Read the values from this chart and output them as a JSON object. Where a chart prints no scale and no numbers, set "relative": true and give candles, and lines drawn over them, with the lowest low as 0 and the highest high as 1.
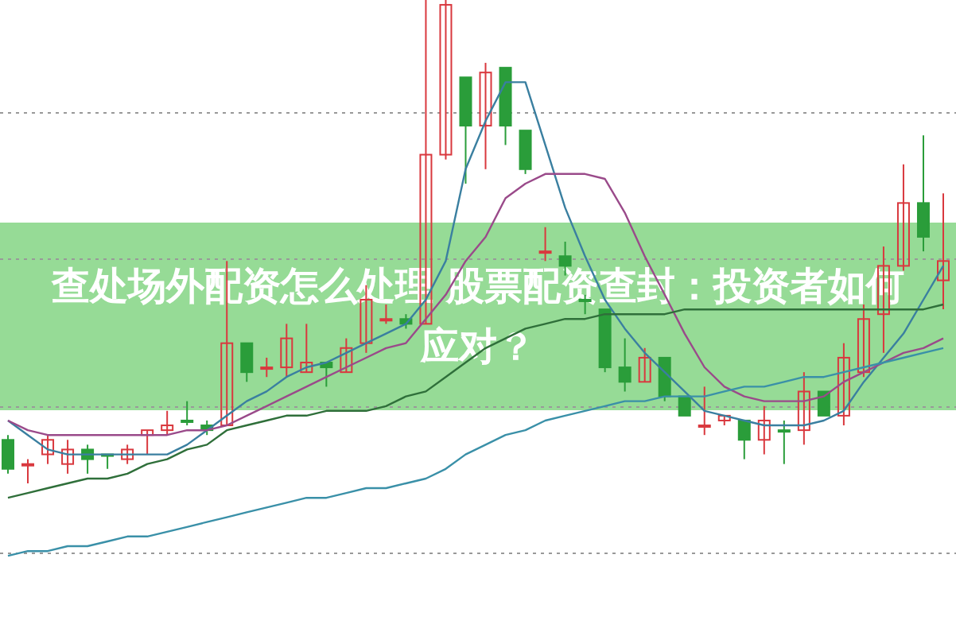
{
  "chart_data": {
    "type": "candlestick",
    "title": "查处场外配资怎么处理 股票配资查封：投资者如何应对？",
    "relative": true,
    "grid": true,
    "categories": [
      null,
      null,
      null,
      null,
      null,
      null,
      null,
      null,
      null,
      null,
      null,
      null,
      null,
      null,
      null,
      null,
      null,
      null,
      null,
      null,
      null,
      null,
      null,
      null,
      null,
      null,
      null,
      null,
      null,
      null,
      null,
      null,
      null,
      null,
      null,
      null,
      null,
      null,
      null,
      null,
      null,
      null,
      null,
      null,
      null,
      null,
      null,
      null
    ],
    "ohlc": [
      [
        0.09,
        0.1,
        0.02,
        0.03
      ],
      [
        0.04,
        0.05,
        0.0,
        0.04
      ],
      [
        0.06,
        0.1,
        0.04,
        0.09
      ],
      [
        0.04,
        0.09,
        0.02,
        0.07
      ],
      [
        0.07,
        0.08,
        0.02,
        0.05
      ],
      [
        0.06,
        0.06,
        0.03,
        0.06
      ],
      [
        0.05,
        0.08,
        0.04,
        0.07
      ],
      [
        0.1,
        0.11,
        0.06,
        0.11
      ],
      [
        0.11,
        0.15,
        0.1,
        0.12
      ],
      [
        0.13,
        0.17,
        0.12,
        0.13
      ],
      [
        0.12,
        0.13,
        0.1,
        0.11
      ],
      [
        0.12,
        0.46,
        0.12,
        0.29
      ],
      [
        0.29,
        0.29,
        0.21,
        0.23
      ],
      [
        0.24,
        0.26,
        0.22,
        0.24
      ],
      [
        0.24,
        0.33,
        0.22,
        0.3
      ],
      [
        0.23,
        0.33,
        0.23,
        0.25
      ],
      [
        0.25,
        0.25,
        0.2,
        0.24
      ],
      [
        0.23,
        0.3,
        0.23,
        0.28
      ],
      [
        0.29,
        0.41,
        0.27,
        0.38
      ],
      [
        0.34,
        0.37,
        0.33,
        0.34
      ],
      [
        0.34,
        0.35,
        0.32,
        0.33
      ],
      [
        0.33,
        1.0,
        0.33,
        0.68
      ],
      [
        0.68,
        1.0,
        0.67,
        0.99
      ],
      [
        0.84,
        0.84,
        0.62,
        0.74
      ],
      [
        0.74,
        0.87,
        0.65,
        0.85
      ],
      [
        0.86,
        0.86,
        0.7,
        0.74
      ],
      [
        0.73,
        0.73,
        0.64,
        0.65
      ],
      [
        0.48,
        0.53,
        0.46,
        0.48
      ],
      [
        0.47,
        0.5,
        0.43,
        0.45
      ],
      [
        0.38,
        0.39,
        0.35,
        0.38
      ],
      [
        0.36,
        0.36,
        0.23,
        0.24
      ],
      [
        0.24,
        0.3,
        0.19,
        0.21
      ],
      [
        0.21,
        0.28,
        0.21,
        0.26
      ],
      [
        0.26,
        0.26,
        0.17,
        0.18
      ],
      [
        0.18,
        0.18,
        0.14,
        0.14
      ],
      [
        0.12,
        0.2,
        0.1,
        0.12
      ],
      [
        0.13,
        0.14,
        0.12,
        0.14
      ],
      [
        0.13,
        0.13,
        0.05,
        0.09
      ],
      [
        0.09,
        0.16,
        0.06,
        0.13
      ],
      [
        0.11,
        0.13,
        0.04,
        0.11
      ],
      [
        0.11,
        0.23,
        0.08,
        0.19
      ],
      [
        0.19,
        0.19,
        0.14,
        0.14
      ],
      [
        0.14,
        0.29,
        0.12,
        0.26
      ],
      [
        0.23,
        0.37,
        0.22,
        0.34
      ],
      [
        0.35,
        0.49,
        0.27,
        0.45
      ],
      [
        0.45,
        0.66,
        0.44,
        0.58
      ],
      [
        0.58,
        0.72,
        0.48,
        0.51
      ],
      [
        0.42,
        0.6,
        0.36,
        0.46
      ]
    ],
    "colors": [
      "#2a9d3a",
      "#d9383e",
      "#d9383e",
      "#d9383e",
      "#2a9d3a",
      "#2a9d3a",
      "#d9383e",
      "#d9383e",
      "#d9383e",
      "#2a9d3a",
      "#2a9d3a",
      "#d9383e",
      "#2a9d3a",
      "#d9383e",
      "#d9383e",
      "#d9383e",
      "#2a9d3a",
      "#d9383e",
      "#d9383e",
      "#d9383e",
      "#2a9d3a",
      "#d9383e",
      "#d9383e",
      "#2a9d3a",
      "#d9383e",
      "#2a9d3a",
      "#2a9d3a",
      "#d9383e",
      "#2a9d3a",
      "#2a9d3a",
      "#2a9d3a",
      "#2a9d3a",
      "#d9383e",
      "#2a9d3a",
      "#2a9d3a",
      "#d9383e",
      "#d9383e",
      "#2a9d3a",
      "#d9383e",
      "#2a9d3a",
      "#d9383e",
      "#2a9d3a",
      "#d9383e",
      "#d9383e",
      "#d9383e",
      "#d9383e",
      "#2a9d3a",
      "#d9383e"
    ],
    "series": [
      {
        "type": "line",
        "color": "#3a7fa0",
        "values": [
          0.13,
          0.1,
          0.07,
          0.06,
          0.06,
          0.06,
          0.06,
          0.06,
          0.06,
          0.08,
          0.11,
          0.14,
          0.17,
          0.19,
          0.22,
          0.24,
          0.25,
          0.27,
          0.29,
          0.31,
          0.33,
          0.38,
          0.46,
          0.65,
          0.75,
          0.83,
          0.83,
          0.7,
          0.57,
          0.47,
          0.38,
          0.32,
          0.27,
          0.23,
          0.19,
          0.15,
          0.14,
          0.13,
          0.12,
          0.12,
          0.12,
          0.13,
          0.15,
          0.21,
          0.26,
          0.31,
          0.38,
          0.45
        ]
      },
      {
        "type": "line",
        "color": "#9a4a8a",
        "values": [
          0.13,
          0.11,
          0.1,
          0.1,
          0.1,
          0.1,
          0.1,
          0.1,
          0.1,
          0.11,
          0.11,
          0.12,
          0.14,
          0.16,
          0.18,
          0.2,
          0.22,
          0.24,
          0.26,
          0.28,
          0.29,
          0.34,
          0.39,
          0.46,
          0.51,
          0.59,
          0.62,
          0.64,
          0.64,
          0.64,
          0.63,
          0.56,
          0.47,
          0.39,
          0.31,
          0.24,
          0.2,
          0.18,
          0.17,
          0.17,
          0.17,
          0.18,
          0.21,
          0.23,
          0.25,
          0.27,
          0.28,
          0.3
        ]
      },
      {
        "type": "line",
        "color": "#2f6f3a",
        "values": [
          -0.03,
          -0.02,
          -0.01,
          0.0,
          0.01,
          0.01,
          0.02,
          0.04,
          0.05,
          0.07,
          0.08,
          0.11,
          0.12,
          0.13,
          0.14,
          0.14,
          0.15,
          0.15,
          0.15,
          0.16,
          0.18,
          0.19,
          0.22,
          0.25,
          0.28,
          0.3,
          0.32,
          0.33,
          0.34,
          0.34,
          0.35,
          0.35,
          0.35,
          0.35,
          0.36,
          0.36,
          0.36,
          0.36,
          0.36,
          0.36,
          0.36,
          0.36,
          0.36,
          0.36,
          0.36,
          0.36,
          0.36,
          0.37
        ]
      },
      {
        "type": "line",
        "color": "#3a90a8",
        "values": [
          -0.15,
          -0.14,
          -0.14,
          -0.13,
          -0.13,
          -0.12,
          -0.11,
          -0.11,
          -0.1,
          -0.09,
          -0.08,
          -0.07,
          -0.06,
          -0.05,
          -0.04,
          -0.03,
          -0.03,
          -0.02,
          -0.01,
          -0.01,
          0.0,
          0.01,
          0.03,
          0.06,
          0.08,
          0.1,
          0.11,
          0.13,
          0.14,
          0.15,
          0.16,
          0.17,
          0.17,
          0.18,
          0.18,
          0.18,
          0.19,
          0.2,
          0.2,
          0.21,
          0.22,
          0.22,
          0.23,
          0.24,
          0.25,
          0.26,
          0.27,
          0.28
        ]
      }
    ]
  }
}
